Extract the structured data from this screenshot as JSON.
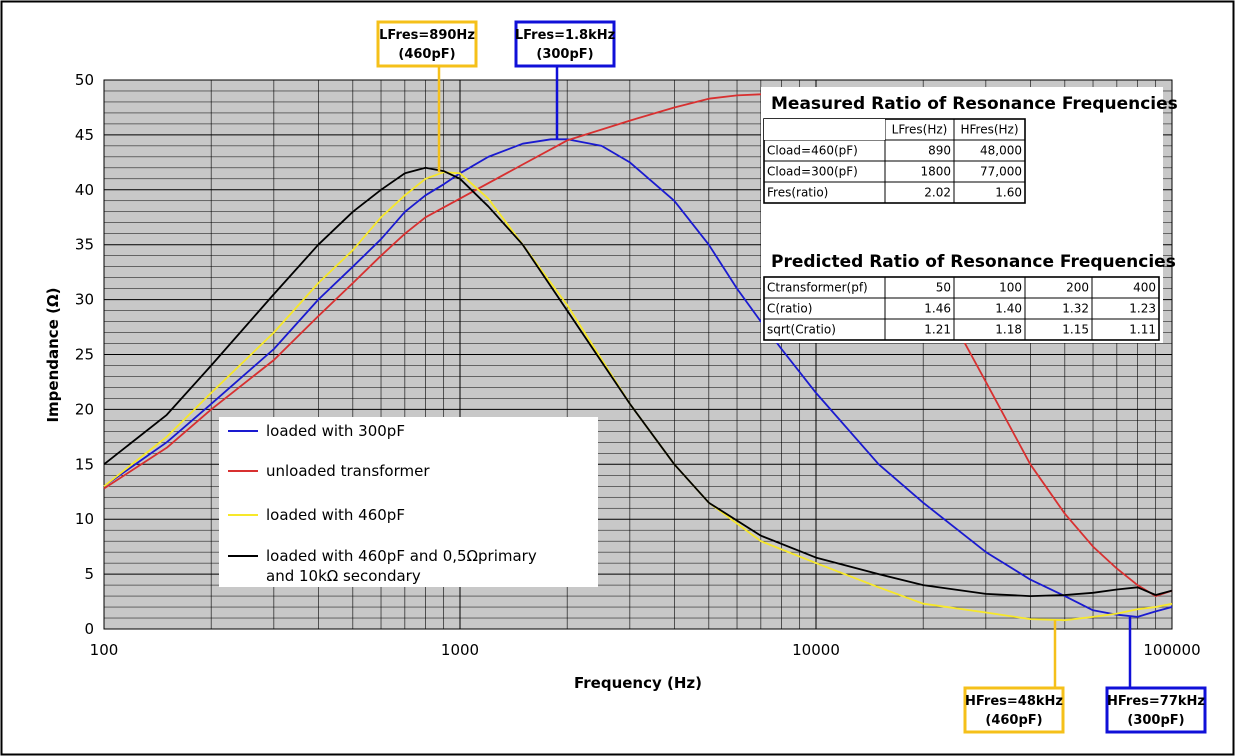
{
  "chart_data": {
    "type": "line",
    "xscale": "log",
    "xlim": [
      100,
      100000
    ],
    "ylim": [
      0,
      50
    ],
    "xlabel": "Frequency (Hz)",
    "ylabel": "Impendance (Ω)",
    "x_ticks": [
      "100",
      "1000",
      "10000",
      "100000"
    ],
    "y_ticks": [
      "0",
      "5",
      "10",
      "15",
      "20",
      "25",
      "30",
      "35",
      "40",
      "45",
      "50"
    ],
    "grid": true,
    "legend_position": "bottom-left inside plot",
    "series": [
      {
        "name": "loaded with 300pF",
        "color": "#1a1ad0",
        "points": [
          [
            100,
            13
          ],
          [
            150,
            17
          ],
          [
            200,
            20.5
          ],
          [
            300,
            25.5
          ],
          [
            400,
            30
          ],
          [
            500,
            33
          ],
          [
            600,
            35.5
          ],
          [
            700,
            38
          ],
          [
            800,
            39.5
          ],
          [
            900,
            40.5
          ],
          [
            1000,
            41.5
          ],
          [
            1200,
            43
          ],
          [
            1500,
            44.2
          ],
          [
            1800,
            44.6
          ],
          [
            2000,
            44.6
          ],
          [
            2500,
            44
          ],
          [
            3000,
            42.5
          ],
          [
            4000,
            39
          ],
          [
            5000,
            35
          ],
          [
            6000,
            31
          ],
          [
            7000,
            28
          ],
          [
            8000,
            25.5
          ],
          [
            10000,
            21.5
          ],
          [
            15000,
            15
          ],
          [
            20000,
            11.5
          ],
          [
            30000,
            7
          ],
          [
            40000,
            4.5
          ],
          [
            50000,
            3
          ],
          [
            60000,
            1.7
          ],
          [
            70000,
            1.3
          ],
          [
            80000,
            1.1
          ],
          [
            90000,
            1.6
          ],
          [
            100000,
            2
          ]
        ]
      },
      {
        "name": "unloaded transformer",
        "color": "#d83030",
        "points": [
          [
            100,
            12.8
          ],
          [
            150,
            16.5
          ],
          [
            200,
            20
          ],
          [
            300,
            24.5
          ],
          [
            400,
            28.5
          ],
          [
            500,
            31.5
          ],
          [
            600,
            34
          ],
          [
            700,
            36
          ],
          [
            800,
            37.5
          ],
          [
            1000,
            39.2
          ],
          [
            1500,
            42.3
          ],
          [
            2000,
            44.5
          ],
          [
            3000,
            46.3
          ],
          [
            4000,
            47.5
          ],
          [
            5000,
            48.3
          ],
          [
            6000,
            48.6
          ],
          [
            7000,
            48.7
          ],
          [
            8000,
            48.7
          ],
          [
            10000,
            48.5
          ],
          [
            15000,
            46
          ],
          [
            20000,
            33
          ],
          [
            30000,
            22.5
          ],
          [
            40000,
            15
          ],
          [
            50000,
            10.5
          ],
          [
            60000,
            7.5
          ],
          [
            70000,
            5.5
          ],
          [
            80000,
            4
          ],
          [
            90000,
            3
          ],
          [
            100000,
            3.5
          ]
        ]
      },
      {
        "name": "loaded with 460pF",
        "color": "#f7e82a",
        "points": [
          [
            100,
            13
          ],
          [
            150,
            17.5
          ],
          [
            200,
            21.5
          ],
          [
            300,
            27
          ],
          [
            400,
            31.5
          ],
          [
            500,
            34.5
          ],
          [
            600,
            37.5
          ],
          [
            700,
            39.5
          ],
          [
            800,
            41
          ],
          [
            900,
            41.6
          ],
          [
            1000,
            41.5
          ],
          [
            1200,
            39.2
          ],
          [
            1500,
            35
          ],
          [
            2000,
            29.5
          ],
          [
            3000,
            20.5
          ],
          [
            4000,
            15
          ],
          [
            5000,
            11.5
          ],
          [
            7000,
            8
          ],
          [
            10000,
            6
          ],
          [
            15000,
            3.8
          ],
          [
            20000,
            2.3
          ],
          [
            30000,
            1.5
          ],
          [
            40000,
            0.9
          ],
          [
            50000,
            0.8
          ],
          [
            60000,
            1.1
          ],
          [
            70000,
            1.4
          ],
          [
            80000,
            1.8
          ],
          [
            90000,
            2
          ],
          [
            100000,
            2.3
          ]
        ]
      },
      {
        "name": "loaded with 460pF and 0,5Ωprimary and 10kΩ secondary",
        "color": "#000000",
        "points": [
          [
            100,
            15
          ],
          [
            150,
            19.5
          ],
          [
            200,
            24
          ],
          [
            300,
            30.5
          ],
          [
            400,
            35
          ],
          [
            500,
            38
          ],
          [
            600,
            40
          ],
          [
            700,
            41.5
          ],
          [
            800,
            42
          ],
          [
            900,
            41.7
          ],
          [
            1000,
            41
          ],
          [
            1200,
            38.5
          ],
          [
            1500,
            35
          ],
          [
            2000,
            29
          ],
          [
            3000,
            20.5
          ],
          [
            4000,
            15
          ],
          [
            5000,
            11.5
          ],
          [
            7000,
            8.5
          ],
          [
            10000,
            6.5
          ],
          [
            15000,
            5
          ],
          [
            20000,
            4
          ],
          [
            30000,
            3.2
          ],
          [
            40000,
            3
          ],
          [
            50000,
            3.1
          ],
          [
            60000,
            3.3
          ],
          [
            70000,
            3.6
          ],
          [
            80000,
            3.8
          ],
          [
            90000,
            3.1
          ],
          [
            100000,
            3.5
          ]
        ]
      }
    ],
    "annotations": [
      {
        "line1": "LFres=890Hz",
        "line2": "(460pF)",
        "x": 890,
        "y": 41.6,
        "color": "#f5c01a",
        "anchor": "top"
      },
      {
        "line1": "LFres=1.8kHz",
        "line2": "(300pF)",
        "x": 1800,
        "y": 44.6,
        "color": "#1010d8",
        "anchor": "top"
      },
      {
        "line1": "HFres=48kHz",
        "line2": "(460pF)",
        "x": 48000,
        "y": 0.8,
        "color": "#f5c01a",
        "anchor": "bottom"
      },
      {
        "line1": "HFres=77kHz",
        "line2": "(300pF)",
        "x": 77000,
        "y": 1.1,
        "color": "#1010d8",
        "anchor": "bottom"
      }
    ],
    "tables": [
      {
        "title": "Measured Ratio of Resonance Frequencies",
        "header": [
          "",
          "LFres(Hz)",
          "HFres(Hz)"
        ],
        "rows": [
          [
            "Cload=460(pF)",
            "890",
            "48,000"
          ],
          [
            "Cload=300(pF)",
            "1800",
            "77,000"
          ],
          [
            "Fres(ratio)",
            "2.02",
            "1.60"
          ]
        ]
      },
      {
        "title": "Predicted Ratio of Resonance Frequencies",
        "header": [
          "Ctransformer(pf)",
          "50",
          "100",
          "200",
          "400"
        ],
        "rows": [
          [
            "C(ratio)",
            "1.46",
            "1.40",
            "1.32",
            "1.23"
          ],
          [
            "sqrt(Cratio)",
            "1.21",
            "1.18",
            "1.15",
            "1.11"
          ]
        ]
      }
    ]
  },
  "colors": {
    "plot_background": "#c8c8c8",
    "grid": "#000000"
  }
}
